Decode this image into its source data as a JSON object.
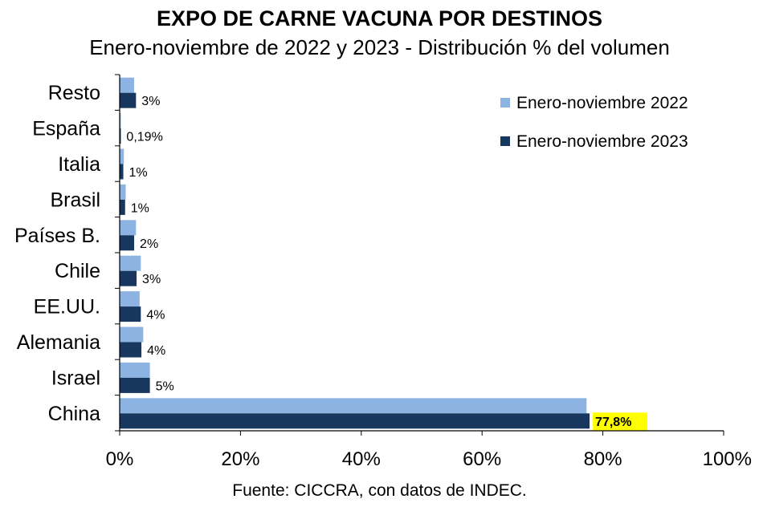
{
  "title": "EXPO DE CARNE VACUNA POR DESTINOS",
  "subtitle": "Enero-noviembre de 2022 y 2023 - Distribución % del volumen",
  "source": "Fuente: CICCRA, con datos de INDEC.",
  "chart_data": {
    "type": "bar",
    "orientation": "horizontal",
    "title": "EXPO DE CARNE VACUNA POR DESTINOS",
    "subtitle": "Enero-noviembre de 2022 y 2023 - Distribución % del volumen",
    "categories": [
      "China",
      "Israel",
      "Alemania",
      "EE.UU.",
      "Chile",
      "Países B.",
      "Brasil",
      "Italia",
      "España",
      "Resto"
    ],
    "series": [
      {
        "name": "Enero-noviembre 2022",
        "color": "#8db3e2",
        "values": [
          77.3,
          5.0,
          3.9,
          3.3,
          3.5,
          2.7,
          1.0,
          0.7,
          0.1,
          2.4
        ]
      },
      {
        "name": "Enero-noviembre 2023",
        "color": "#17375e",
        "values": [
          77.8,
          5.0,
          3.6,
          3.5,
          2.8,
          2.4,
          0.9,
          0.6,
          0.19,
          2.7
        ],
        "data_labels": [
          "77,8%",
          "5%",
          "4%",
          "4%",
          "3%",
          "2%",
          "1%",
          "1%",
          "0,19%",
          "3%"
        ]
      }
    ],
    "highlight": {
      "category": "China",
      "series": 1,
      "background": "#ffff00"
    },
    "xlim": [
      0,
      100
    ],
    "x_ticks": [
      0,
      20,
      40,
      60,
      80,
      100
    ],
    "x_tick_labels": [
      "0%",
      "20%",
      "40%",
      "60%",
      "80%",
      "100%"
    ],
    "grid": false,
    "legend_position": "top-right"
  }
}
